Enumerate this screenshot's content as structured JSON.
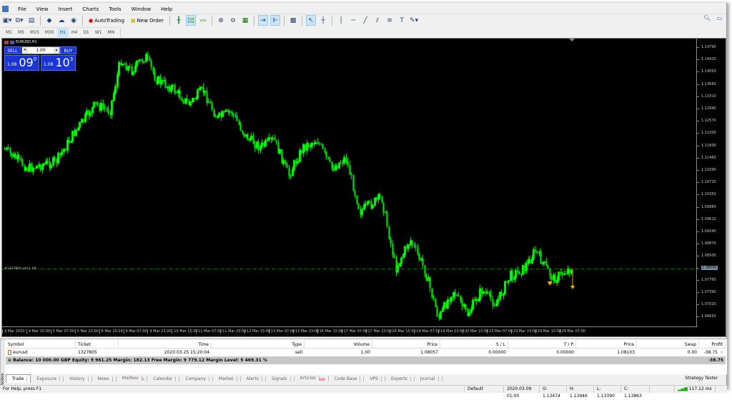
{
  "menu": [
    "File",
    "View",
    "Insert",
    "Charts",
    "Tools",
    "Window",
    "Help"
  ],
  "toolbar": {
    "autotrading": "AutoTrading",
    "new_order": "New Order"
  },
  "timeframes": [
    "M1",
    "M5",
    "M15",
    "M30",
    "H1",
    "H4",
    "D1",
    "W1",
    "MN"
  ],
  "active_timeframe": "H1",
  "chart": {
    "title": "EURUSD,H1",
    "one_click": {
      "sell": "SELL",
      "buy": "BUY",
      "lot": "1.00",
      "sell_small": "1.08",
      "sell_big": "09",
      "sell_sup": "0",
      "buy_small": "1.08",
      "buy_big": "10",
      "buy_sup": "3"
    },
    "order_label": "#1327805 sell 1.00",
    "price_labels": [
      "1.14790",
      "1.14420",
      "1.14050",
      "1.13680",
      "1.13310",
      "1.12940",
      "1.12570",
      "1.12200",
      "1.11830",
      "1.11460",
      "1.11090",
      "1.10720",
      "1.10350",
      "1.09980",
      "1.09610",
      "1.09240",
      "1.08870",
      "1.08500",
      "1.08090",
      "1.07760",
      "1.07390",
      "1.07020",
      "1.06650"
    ],
    "current_price": "1.08090",
    "time_labels": [
      "3 Mar 2020",
      "4 Mar 15:00",
      "5 Mar 07:00",
      "5 Mar 23:00",
      "6 Mar 15:00",
      "9 Mar 07:00",
      "9 Mar 23:00",
      "10 Mar 15:00",
      "11 Mar 07:00",
      "11 Mar 23:00",
      "12 Mar 15:00",
      "13 Mar 07:00",
      "13 Mar 23:00",
      "16 Mar 15:00",
      "17 Mar 07:00",
      "17 Mar 23:00",
      "18 Mar 15:00",
      "19 Mar 07:00",
      "19 Mar 23:00",
      "20 Mar 15:00",
      "23 Mar 07:00",
      "23 Mar 23:00",
      "24 Mar 15:00",
      "25 Mar 07:00"
    ],
    "colors": {
      "bull": "#00ff00",
      "bear": "#00ff00",
      "background": "#000000",
      "order_line": "#00a000",
      "arrow": "#ffc000"
    }
  },
  "terminal": {
    "toolbox_label": "Toolbox",
    "headers": [
      "Symbol",
      "Ticket",
      "Time",
      "Type",
      "Volume",
      "Price",
      "S / L",
      "T / P",
      "Price",
      "Swap",
      "Profit"
    ],
    "rows": [
      [
        "eurusd",
        "1327805",
        "2020.03.25 15:20:04",
        "sell",
        "1.00",
        "1.08057",
        "0.00000",
        "0.00000",
        "1.08103",
        "0.00",
        "-38.75"
      ]
    ],
    "balance_line": "Balance: 10 000.00 GBP  Equity: 9 961.25  Margin: 182.13  Free Margin: 9 779.12  Margin Level: 5 469.31 %",
    "total_profit": "-38.75",
    "tabs": [
      "Trade",
      "Exposure",
      "History",
      "News",
      "Mailbox",
      "Calendar",
      "Company",
      "Market",
      "Alerts",
      "Signals",
      "Articles",
      "Code Base",
      "VPS",
      "Experts",
      "Journal"
    ],
    "mailbox_badge": "7",
    "articles_badge": "669",
    "strategy_tester": "Strategy Tester"
  },
  "status": {
    "help": "For Help, press F1",
    "profile": "Default",
    "datetime": "2020.03.09 01:00",
    "open": "O: 1.13474",
    "high": "H: 1.13946",
    "low": "L: 1.13390",
    "close": "C: 1.13863",
    "ping": "117.12 ms"
  }
}
